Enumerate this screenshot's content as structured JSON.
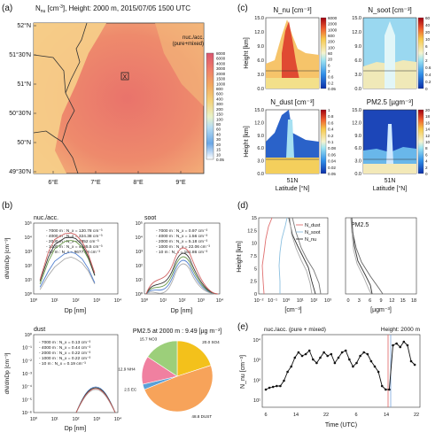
{
  "panel_a": {
    "label": "(a)",
    "title": "N",
    "title_sub": "nu",
    "title_rest": " [cm",
    "title_unit_sup": "-3",
    "title_tail": "], Height: 2000 m, 2015/07/05  1500 UTC",
    "legend_title_1": "nuc./acc.",
    "legend_title_2": "(pure+mixed)",
    "colorbar_ticks": [
      "8000",
      "6000",
      "4000",
      "3000",
      "2000",
      "1500",
      "1000",
      "800",
      "600",
      "400",
      "300",
      "200",
      "150",
      "100",
      "80",
      "60",
      "40",
      "30",
      "20",
      "15",
      "10",
      "0.05"
    ],
    "lat_labels": [
      "52°N",
      "51°30'N",
      "51°N",
      "50°30'N",
      "50°N",
      "49°30'N"
    ],
    "lon_labels": [
      "6°E",
      "7°E",
      "8°E",
      "9°E"
    ],
    "marker": "X"
  },
  "panel_b": {
    "label": "(b)",
    "nuc": {
      "title": "nuc./acc.",
      "ylabel": "dN/dlnDp [cm⁻³]",
      "xlabel": "Dp [nm]",
      "legend": [
        "7000 m : N_x = 120.78 cm⁻³",
        "4000 m : N_x = 324.38 cm⁻³",
        "2000 m : N_x = 2352 cm⁻³",
        "1000 m : N_x = 4155.5 cm⁻³",
        "10 m : N_x = 9677.28 cm⁻³"
      ],
      "yticks": [
        "10⁵",
        "10⁴",
        "10³",
        "10²",
        "10¹",
        "10⁰"
      ],
      "xticks": [
        "10⁰",
        "10¹",
        "10²",
        "10³",
        "10⁴"
      ]
    },
    "soot": {
      "title": "soot",
      "legend": [
        "7000 m : N_x = 0.97 cm⁻³",
        "4000 m : N_x = 1.56 cm⁻³",
        "2000 m : N_x = 5.18 cm⁻³",
        "1000 m : N_x = 22.06 cm⁻³",
        "10 m : N_x = 181.86 cm⁻³"
      ],
      "yticks": [
        "10⁵",
        "10⁴",
        "10³",
        "10²",
        "10¹",
        "10⁰"
      ],
      "xticks": [
        "10⁰",
        "10¹",
        "10²",
        "10³",
        "10⁴"
      ],
      "xlabel": "Dp [nm]"
    },
    "dust": {
      "title": "dust",
      "ylabel": "dN/dlnDp [cm⁻³]",
      "xlabel": "Dp [nm]",
      "legend": [
        "7000 m : N_x = 0.13 cm⁻³",
        "4000 m : N_x = 0.44 cm⁻³",
        "2000 m : N_x = 0.22 cm⁻³",
        "1000 m : N_x = 0.22 cm⁻³",
        "10 m : N_x = 0.19 cm⁻³"
      ],
      "yticks": [
        "10⁰",
        "10⁻¹",
        "10⁻²",
        "10⁻³",
        "10⁻⁴",
        "10⁻⁵",
        "10⁻⁶"
      ],
      "xticks": [
        "10⁰",
        "10¹",
        "10²",
        "10³",
        "10⁴"
      ]
    },
    "pie": {
      "title": "PM2.5 at 2000 m : 9.49 [µg m⁻³]",
      "labels": [
        "20.0 SO4",
        "48.8 DUST",
        "2.5 EC",
        "12.9 NH4",
        "15.7 NO3"
      ]
    }
  },
  "panel_c": {
    "label": "(c)",
    "titles": [
      "N_nu [cm⁻³]",
      "N_soot [cm⁻³]",
      "N_dust [cm⁻³]",
      "PM2.5 [µgm⁻³]"
    ],
    "ylabel": "Height [km]",
    "yticks": [
      "15.0",
      "12.0",
      "9.0",
      "6.0",
      "3.0",
      "0.0"
    ],
    "cb1": [
      "6000",
      "2000",
      "1000",
      "600",
      "200",
      "100",
      "60",
      "20",
      "6",
      "2",
      "0.6",
      "0.2",
      "0.05"
    ],
    "cb2": [
      "60",
      "40",
      "20",
      "10",
      "6",
      "4",
      "2",
      "0.6",
      "0.4",
      "0.2",
      "0"
    ],
    "cb3": [
      "1",
      "0.8",
      "0.6",
      "0.4",
      "0.2",
      "0.1",
      "0.08",
      "0.06",
      "0.04",
      "0.02",
      "0.05"
    ],
    "cb4": [
      "20",
      "18",
      "16",
      "14",
      "12",
      "10",
      "8",
      "6",
      "4",
      "2",
      "0"
    ],
    "xlabel_top": "51N",
    "xlabel": "Latitude [°N]"
  },
  "panel_d": {
    "label": "(d)",
    "ylabel": "Height [km]",
    "yticks": [
      "15",
      "12.5",
      "10",
      "7.5",
      "5",
      "2.5",
      "0"
    ],
    "legend": [
      "N_dust",
      "N_soot",
      "N_nu"
    ],
    "xlabel": "[cm⁻³]",
    "xticks": [
      "10⁻²",
      "10⁻¹",
      "10⁰",
      "10¹",
      "10²",
      "10³"
    ],
    "pm_title": "PM2.5",
    "pm_xticks": [
      "0",
      "3",
      "6",
      "9",
      "12",
      "15",
      "18"
    ],
    "pm_xlabel": "[µgm⁻³]"
  },
  "panel_e": {
    "label": "(e)",
    "title_left": "nuc./acc. (pure + mixed)",
    "title_right": "Height: 2000 m",
    "ylabel": "N_nu [cm⁻³]",
    "yticks": [
      "10⁴",
      "10³",
      "10²",
      "10¹"
    ],
    "xticks": [
      "6",
      "14",
      "22",
      "6",
      "14",
      "22"
    ],
    "xlabel": "Time (UTC)"
  },
  "chart_data": [
    {
      "type": "line",
      "title": "nuc./acc.",
      "xlabel": "Dp [nm]",
      "ylabel": "dN/dlnDp [cm⁻³]",
      "xscale": "log",
      "yscale": "log",
      "xlim": [
        1,
        10000
      ],
      "ylim": [
        1,
        100000
      ],
      "series": [
        {
          "name": "7000 m : N_x = 120.78 cm⁻³",
          "x": [
            2,
            5,
            10,
            30,
            60,
            100,
            200,
            400,
            800
          ],
          "y": [
            2,
            20,
            80,
            300,
            400,
            300,
            150,
            40,
            5
          ]
        },
        {
          "name": "4000 m : N_x = 324.38 cm⁻³",
          "x": [
            2,
            5,
            10,
            30,
            60,
            100,
            200,
            400,
            800
          ],
          "y": [
            3,
            40,
            200,
            700,
            900,
            700,
            300,
            60,
            6
          ]
        },
        {
          "name": "2000 m : N_x = 2352 cm⁻³",
          "x": [
            2,
            5,
            10,
            30,
            60,
            100,
            200,
            400,
            800
          ],
          "y": [
            5,
            200,
            1500,
            5000,
            6000,
            5000,
            2000,
            300,
            20
          ]
        },
        {
          "name": "1000 m : N_x = 4155.5 cm⁻³",
          "x": [
            2,
            5,
            10,
            30,
            60,
            100,
            200,
            400,
            800
          ],
          "y": [
            8,
            400,
            3000,
            9000,
            10000,
            8000,
            3000,
            400,
            20
          ]
        },
        {
          "name": "10 m : N_x = 9677.28 cm⁻³",
          "x": [
            2,
            5,
            10,
            30,
            60,
            100,
            200,
            400,
            800
          ],
          "y": [
            10,
            900,
            7000,
            18000,
            20000,
            15000,
            5000,
            600,
            30
          ]
        }
      ]
    },
    {
      "type": "pie",
      "title": "PM2.5 at 2000 m : 9.49 [µg m⁻³]",
      "categories": [
        "SO4",
        "DUST",
        "EC",
        "NH4",
        "NO3"
      ],
      "values": [
        20.0,
        48.8,
        2.5,
        12.9,
        15.7
      ],
      "colors": [
        "#f3c11b",
        "#f7a35a",
        "#5aa0d8",
        "#f080a0",
        "#9ccf7a"
      ]
    }
  ]
}
